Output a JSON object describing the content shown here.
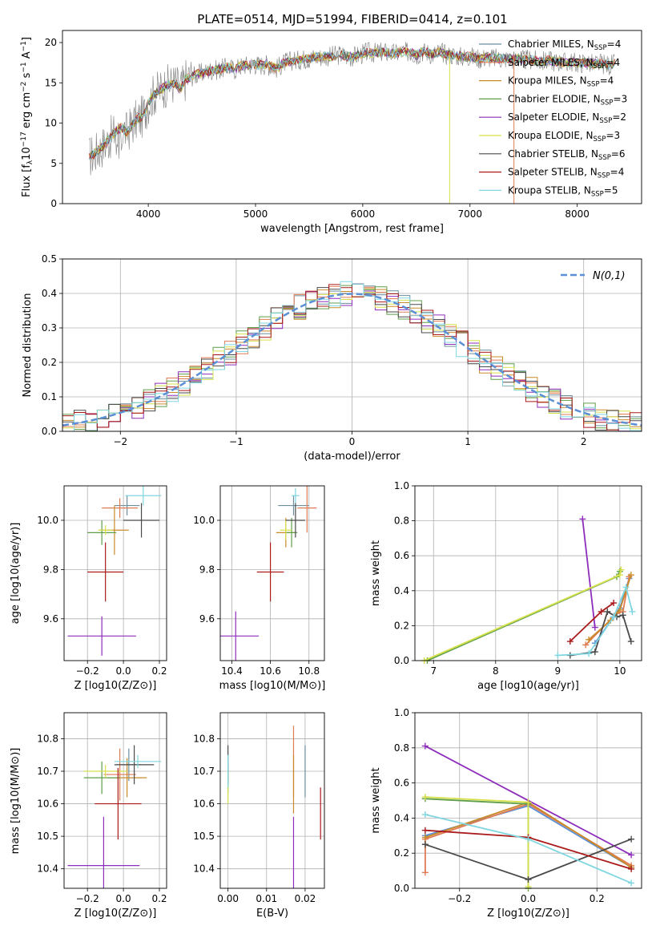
{
  "figure": {
    "title": "PLATE=0514, MJD=51994, FIBERID=0414, z=0.101"
  },
  "models": [
    {
      "name": "Chabrier MILES",
      "nssp": "4",
      "color": "#6b8f9f"
    },
    {
      "name": "Salpeter MILES",
      "nssp": "4",
      "color": "#e07b54"
    },
    {
      "name": "Kroupa MILES",
      "nssp": "4",
      "color": "#c98b2a"
    },
    {
      "name": "Chabrier ELODIE",
      "nssp": "3",
      "color": "#5f9f4a"
    },
    {
      "name": "Salpeter ELODIE",
      "nssp": "2",
      "color": "#8e2dbb"
    },
    {
      "name": "Kroupa ELODIE",
      "nssp": "3",
      "color": "#d6e04a"
    },
    {
      "name": "Chabrier STELIB",
      "nssp": "6",
      "color": "#4a4a4a"
    },
    {
      "name": "Salpeter STELIB",
      "nssp": "4",
      "color": "#aa1a1a"
    },
    {
      "name": "Kroupa STELIB",
      "nssp": "5",
      "color": "#7fd6e0"
    }
  ],
  "chart_data": [
    {
      "id": "spectrum",
      "type": "line",
      "title": "PLATE=0514, MJD=51994, FIBERID=0414, z=0.101",
      "xlabel": "wavelength [Angstrom, rest frame]",
      "ylabel": "Flux [f_λ10^-17 erg cm^-2 s^-1 A^-1]",
      "xlim": [
        3200,
        8600
      ],
      "ylim": [
        0,
        21.5
      ],
      "xticks": [
        4000,
        5000,
        6000,
        7000,
        8000
      ],
      "yticks": [
        0,
        5,
        10,
        15,
        20
      ],
      "grid": false,
      "legend": "upper right",
      "spectrum_x": [
        3450,
        3500,
        3550,
        3600,
        3650,
        3700,
        3750,
        3800,
        3850,
        3900,
        3950,
        4000,
        4050,
        4100,
        4150,
        4200,
        4250,
        4300,
        4350,
        4400,
        4450,
        4500,
        4550,
        4600,
        4650,
        4700,
        4750,
        4800,
        4850,
        4900,
        4950,
        5000,
        5050,
        5100,
        5150,
        5200,
        5250,
        5300,
        5350,
        5400,
        5450,
        5500,
        5550,
        5600,
        5650,
        5700,
        5750,
        5800,
        5850,
        5900,
        5950,
        6000,
        6050,
        6100,
        6150,
        6200,
        6250,
        6300,
        6350,
        6400,
        6450,
        6500,
        6550,
        6600,
        6650,
        6700,
        6750,
        6800,
        6850,
        6900,
        6950,
        7000,
        7050,
        7100,
        7150,
        7200,
        7250,
        7300,
        7350,
        7400,
        7450,
        7500,
        7550,
        7600,
        7650,
        7700,
        7750,
        7800,
        7850,
        7900,
        7950,
        8000,
        8050,
        8100,
        8150,
        8200,
        8250,
        8300,
        8350
      ],
      "spectrum_y": [
        5.8,
        6.2,
        6.8,
        7.5,
        8.2,
        9.0,
        9.5,
        8.8,
        9.8,
        10.5,
        10.8,
        12.5,
        13.5,
        14.0,
        14.5,
        14.8,
        15.0,
        14.2,
        15.5,
        15.8,
        16.0,
        16.2,
        16.4,
        16.6,
        16.6,
        16.8,
        17.0,
        16.6,
        17.0,
        17.2,
        17.2,
        17.3,
        17.2,
        17.3,
        17.0,
        16.8,
        17.4,
        17.6,
        17.8,
        17.8,
        18.0,
        18.0,
        18.2,
        18.2,
        18.3,
        18.3,
        18.4,
        18.5,
        18.3,
        18.2,
        18.4,
        18.6,
        18.8,
        18.7,
        18.8,
        18.8,
        18.7,
        18.6,
        18.8,
        18.8,
        18.8,
        18.4,
        18.9,
        18.8,
        18.5,
        18.8,
        18.7,
        18.4,
        18.5,
        18.3,
        18.2,
        18.3,
        18.1,
        18.0,
        18.2,
        18.1,
        18.0,
        18.0,
        18.0,
        17.9,
        18.0,
        17.8,
        17.9,
        17.8,
        17.6,
        17.7,
        17.8,
        17.6,
        17.6,
        17.5,
        17.6,
        17.4,
        17.5,
        17.5,
        17.3,
        17.4,
        17.3,
        17.2,
        17.4
      ]
    },
    {
      "id": "residuals",
      "type": "line",
      "xlabel": "(data-model)/error",
      "ylabel": "Normed distribution",
      "xlim": [
        -2.5,
        2.5
      ],
      "ylim": [
        0,
        0.5
      ],
      "xticks": [
        -2,
        -1,
        0,
        1,
        2
      ],
      "yticks": [
        0.0,
        0.1,
        0.2,
        0.3,
        0.4,
        0.5
      ],
      "grid": true,
      "legend": "upper right",
      "legend_label": "N(0,1)",
      "reference_color": "#5b8fd6"
    },
    {
      "id": "age_vs_Z",
      "type": "scatter",
      "xlabel": "Z [log10(Z/Z⊙)]",
      "ylabel": "age [log10(age/yr)]",
      "xlim": [
        -0.33,
        0.24
      ],
      "ylim": [
        9.43,
        10.14
      ],
      "xticks": [
        -0.2,
        0.0,
        0.2
      ],
      "yticks": [
        9.6,
        9.8,
        10.0
      ],
      "grid": true,
      "points": [
        {
          "x": 0.02,
          "y": 10.06,
          "ex": 0.07,
          "ey": 0.04
        },
        {
          "x": -0.02,
          "y": 10.05,
          "ey": 0.04,
          "ex": 0.1
        },
        {
          "x": -0.05,
          "y": 9.96,
          "ex": 0.08,
          "ey": 0.1
        },
        {
          "x": -0.12,
          "y": 9.95,
          "ex": 0.08,
          "ey": 0.05
        },
        {
          "x": -0.12,
          "y": 9.53,
          "ex": 0.19,
          "ey": 0.08
        },
        {
          "x": -0.1,
          "y": 9.96,
          "ex": 0.04,
          "ey": 0.02
        },
        {
          "x": 0.1,
          "y": 10.0,
          "ex": 0.1,
          "ey": 0.07
        },
        {
          "x": -0.1,
          "y": 9.79,
          "ex": 0.1,
          "ey": 0.12
        },
        {
          "x": 0.11,
          "y": 10.1,
          "ex": 0.1,
          "ey": 0.04
        }
      ]
    },
    {
      "id": "age_vs_mass",
      "type": "scatter",
      "xlabel": "mass [log10(M/M⊙)]",
      "ylabel": "",
      "xlim": [
        10.34,
        10.88
      ],
      "ylim": [
        9.43,
        10.14
      ],
      "xticks": [
        10.4,
        10.6,
        10.8
      ],
      "yticks": [
        9.6,
        9.8,
        10.0
      ],
      "grid": true,
      "points": [
        {
          "x": 10.72,
          "y": 10.06,
          "ex": 0.08,
          "ey": 0.04
        },
        {
          "x": 10.79,
          "y": 10.05,
          "ex": 0.05,
          "ey": 0.1
        },
        {
          "x": 10.68,
          "y": 9.95,
          "ex": 0.05,
          "ey": 0.06
        },
        {
          "x": 10.71,
          "y": 9.95,
          "ex": 0.03,
          "ey": 0.06
        },
        {
          "x": 10.42,
          "y": 9.53,
          "ex": 0.12,
          "ey": 0.1
        },
        {
          "x": 10.68,
          "y": 9.96,
          "ex": 0.03,
          "ey": 0.04
        },
        {
          "x": 10.73,
          "y": 10.0,
          "ex": 0.05,
          "ey": 0.07
        },
        {
          "x": 10.6,
          "y": 9.79,
          "ex": 0.07,
          "ey": 0.12
        },
        {
          "x": 10.73,
          "y": 10.1,
          "ex": 0.02,
          "ey": 0.03
        }
      ]
    },
    {
      "id": "mass_weight_vs_age",
      "type": "line",
      "xlabel": "age [log10(age/yr)]",
      "ylabel": "mass weight",
      "xlim": [
        6.7,
        10.35
      ],
      "ylim": [
        0,
        1.0
      ],
      "xticks": [
        7,
        8,
        9,
        10
      ],
      "yticks": [
        0.0,
        0.2,
        0.4,
        0.6,
        0.8,
        1.0
      ],
      "grid": true,
      "series": [
        {
          "color": "#5b8fd6",
          "x": [
            9.6,
            9.9,
            10.0,
            10.15
          ],
          "y": [
            0.1,
            0.25,
            0.3,
            0.47
          ]
        },
        {
          "color": "#e07b54",
          "x": [
            9.45,
            9.95,
            10.05,
            10.15
          ],
          "y": [
            0.09,
            0.27,
            0.28,
            0.48
          ]
        },
        {
          "color": "#c98b2a",
          "x": [
            9.5,
            9.85,
            10.0,
            10.18
          ],
          "y": [
            0.12,
            0.23,
            0.29,
            0.49
          ]
        },
        {
          "color": "#5f9f4a",
          "x": [
            6.9,
            9.95,
            10.0
          ],
          "y": [
            0.0,
            0.48,
            0.51
          ]
        },
        {
          "color": "#8e2dbb",
          "x": [
            9.4,
            9.6
          ],
          "y": [
            0.81,
            0.19
          ]
        },
        {
          "color": "#d6e04a",
          "x": [
            6.85,
            10.0,
            10.02
          ],
          "y": [
            0.0,
            0.49,
            0.52
          ]
        },
        {
          "color": "#4a4a4a",
          "x": [
            9.2,
            9.6,
            9.8,
            9.95,
            10.05,
            10.18
          ],
          "y": [
            0.03,
            0.05,
            0.28,
            0.25,
            0.26,
            0.11
          ]
        },
        {
          "color": "#aa1a1a",
          "x": [
            9.2,
            9.7,
            9.9
          ],
          "y": [
            0.11,
            0.28,
            0.33
          ]
        },
        {
          "color": "#7fd6e0",
          "x": [
            9.0,
            9.5,
            9.9,
            10.1,
            10.2
          ],
          "y": [
            0.03,
            0.04,
            0.25,
            0.42,
            0.28
          ]
        }
      ]
    },
    {
      "id": "mass_vs_Z",
      "type": "scatter",
      "xlabel": "Z [log10(Z/Z⊙)]",
      "ylabel": "mass [log10(M/M⊙)]",
      "xlim": [
        -0.33,
        0.24
      ],
      "ylim": [
        10.34,
        10.88
      ],
      "xticks": [
        -0.2,
        0.0,
        0.2
      ],
      "yticks": [
        10.4,
        10.5,
        10.6,
        10.7,
        10.8
      ],
      "grid": true,
      "points": [
        {
          "x": 0.03,
          "y": 10.72,
          "ex": 0.07,
          "ey": 0.05
        },
        {
          "x": -0.02,
          "y": 10.69,
          "ex": 0.09,
          "ey": 0.08
        },
        {
          "x": 0.02,
          "y": 10.68,
          "ex": 0.11,
          "ey": 0.06
        },
        {
          "x": -0.12,
          "y": 10.68,
          "ex": 0.1,
          "ey": 0.05
        },
        {
          "x": -0.11,
          "y": 10.41,
          "ex": 0.2,
          "ey": 0.15
        },
        {
          "x": -0.1,
          "y": 10.7,
          "ex": 0.12,
          "ey": 0.02
        },
        {
          "x": 0.06,
          "y": 10.72,
          "ex": 0.11,
          "ey": 0.06
        },
        {
          "x": -0.03,
          "y": 10.6,
          "ex": 0.13,
          "ey": 0.11
        },
        {
          "x": 0.08,
          "y": 10.73,
          "ex": 0.13,
          "ey": 0.02
        }
      ]
    },
    {
      "id": "mass_vs_ebv",
      "type": "scatter",
      "xlabel": "E(B-V)",
      "ylabel": "",
      "xlim": [
        -0.002,
        0.025
      ],
      "ylim": [
        10.34,
        10.88
      ],
      "xticks": [
        0.0,
        0.01,
        0.02
      ],
      "yticks": [
        10.4,
        10.5,
        10.6,
        10.7,
        10.8
      ],
      "grid": true,
      "points": [
        {
          "x": 0.02,
          "y": 10.7,
          "ex": 0.0,
          "ey": 0.08
        },
        {
          "x": 0.017,
          "y": 10.73,
          "ex": 0.0,
          "ey": 0.11
        },
        {
          "x": 0.017,
          "y": 10.66,
          "ex": 0.0,
          "ey": 0.09
        },
        {
          "x": 0.0,
          "y": 10.68,
          "ex": 0.0,
          "ey": 0.05
        },
        {
          "x": 0.017,
          "y": 10.44,
          "ex": 0.0,
          "ey": 0.12
        },
        {
          "x": 0.0,
          "y": 10.65,
          "ex": 0.0,
          "ey": 0.05
        },
        {
          "x": 0.0,
          "y": 10.72,
          "ex": 0.0,
          "ey": 0.06
        },
        {
          "x": 0.024,
          "y": 10.57,
          "ex": 0.0,
          "ey": 0.08
        },
        {
          "x": 0.0,
          "y": 10.7,
          "ex": 0.0,
          "ey": 0.05
        }
      ]
    },
    {
      "id": "mass_weight_vs_Z",
      "type": "line",
      "xlabel": "Z [log10(Z/Z⊙)]",
      "ylabel": "mass weight",
      "xlim": [
        -0.33,
        0.33
      ],
      "ylim": [
        0,
        1.0
      ],
      "xticks": [
        -0.2,
        0.0,
        0.2
      ],
      "yticks": [
        0.0,
        0.2,
        0.4,
        0.6,
        0.8,
        1.0
      ],
      "grid": true,
      "series": [
        {
          "color": "#5b8fd6",
          "x": [
            -0.3,
            0.0,
            0.3
          ],
          "y": [
            0.3,
            0.47,
            0.12
          ]
        },
        {
          "color": "#e07b54",
          "x": [
            -0.3,
            -0.3,
            0.0,
            0.3
          ],
          "y": [
            0.09,
            0.28,
            0.48,
            0.13
          ]
        },
        {
          "color": "#c98b2a",
          "x": [
            -0.3,
            0.0,
            0.3
          ],
          "y": [
            0.29,
            0.49,
            0.12
          ]
        },
        {
          "color": "#5f9f4a",
          "x": [
            -0.3,
            0.0,
            0.0
          ],
          "y": [
            0.51,
            0.48,
            0.0
          ]
        },
        {
          "color": "#8e2dbb",
          "x": [
            -0.3,
            0.3
          ],
          "y": [
            0.81,
            0.19
          ]
        },
        {
          "color": "#d6e04a",
          "x": [
            -0.3,
            0.0,
            0.0
          ],
          "y": [
            0.52,
            0.49,
            0.01
          ]
        },
        {
          "color": "#4a4a4a",
          "x": [
            -0.3,
            0.0,
            0.3
          ],
          "y": [
            0.25,
            0.05,
            0.28
          ]
        },
        {
          "color": "#aa1a1a",
          "x": [
            -0.3,
            0.0,
            0.3
          ],
          "y": [
            0.33,
            0.29,
            0.11
          ]
        },
        {
          "color": "#7fd6e0",
          "x": [
            -0.3,
            0.0,
            0.3
          ],
          "y": [
            0.42,
            0.28,
            0.03
          ]
        }
      ]
    }
  ]
}
